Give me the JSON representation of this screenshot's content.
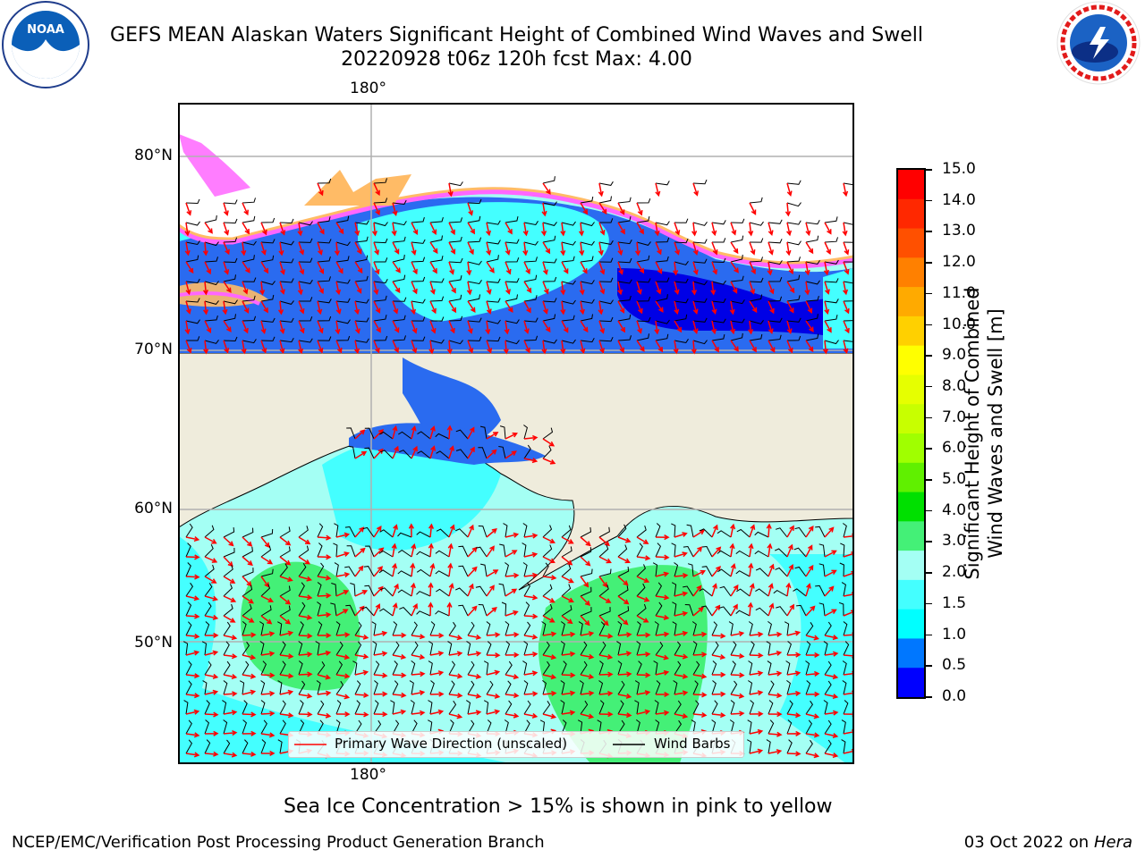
{
  "title_line1": "GEFS MEAN Alaskan Waters Significant Height of Combined Wind Waves and Swell",
  "title_line2": "20220928 t06z 120h fcst   Max: 4.00",
  "logos": {
    "left": "noaa-logo",
    "right": "national-weather-service-logo"
  },
  "map": {
    "lon_top": "180°",
    "lon_bottom": "180°",
    "lat_labels": [
      "80°N",
      "70°N",
      "60°N",
      "50°N"
    ],
    "colors": {
      "land": "#efecdc",
      "ice_white": "#ffffff",
      "border": "#000000"
    }
  },
  "legend": {
    "wave_direction": "Primary Wave Direction (unscaled)",
    "wind_barbs": "Wind Barbs",
    "wave_color": "#ff0000",
    "barb_color": "#000000"
  },
  "colorbar": {
    "title_line1": "Significant Height of Combined",
    "title_line2": "Wind Waves and Swell [m]",
    "ticks": [
      "15.0",
      "14.0",
      "13.0",
      "12.0",
      "11.0",
      "10.0",
      "9.0",
      "8.0",
      "7.0",
      "6.0",
      "5.0",
      "4.0",
      "3.0",
      "2.0",
      "1.5",
      "1.0",
      "0.5",
      "0.0"
    ],
    "colors_top_to_bottom": [
      "#ff0000",
      "#ff2800",
      "#ff5000",
      "#ff8000",
      "#ffaa00",
      "#ffd000",
      "#ffff00",
      "#e6ff00",
      "#c8ff00",
      "#a0ff00",
      "#60f000",
      "#00e000",
      "#44f077",
      "#a4fff4",
      "#44ffff",
      "#00ffff",
      "#0077ff",
      "#0000ff"
    ]
  },
  "caption": "Sea Ice Concentration > 15% is shown in pink to yellow",
  "footer_left": "NCEP/EMC/Verification Post Processing Product Generation Branch",
  "footer_right_date": "03 Oct 2022 on ",
  "footer_right_machine": "Hera"
}
